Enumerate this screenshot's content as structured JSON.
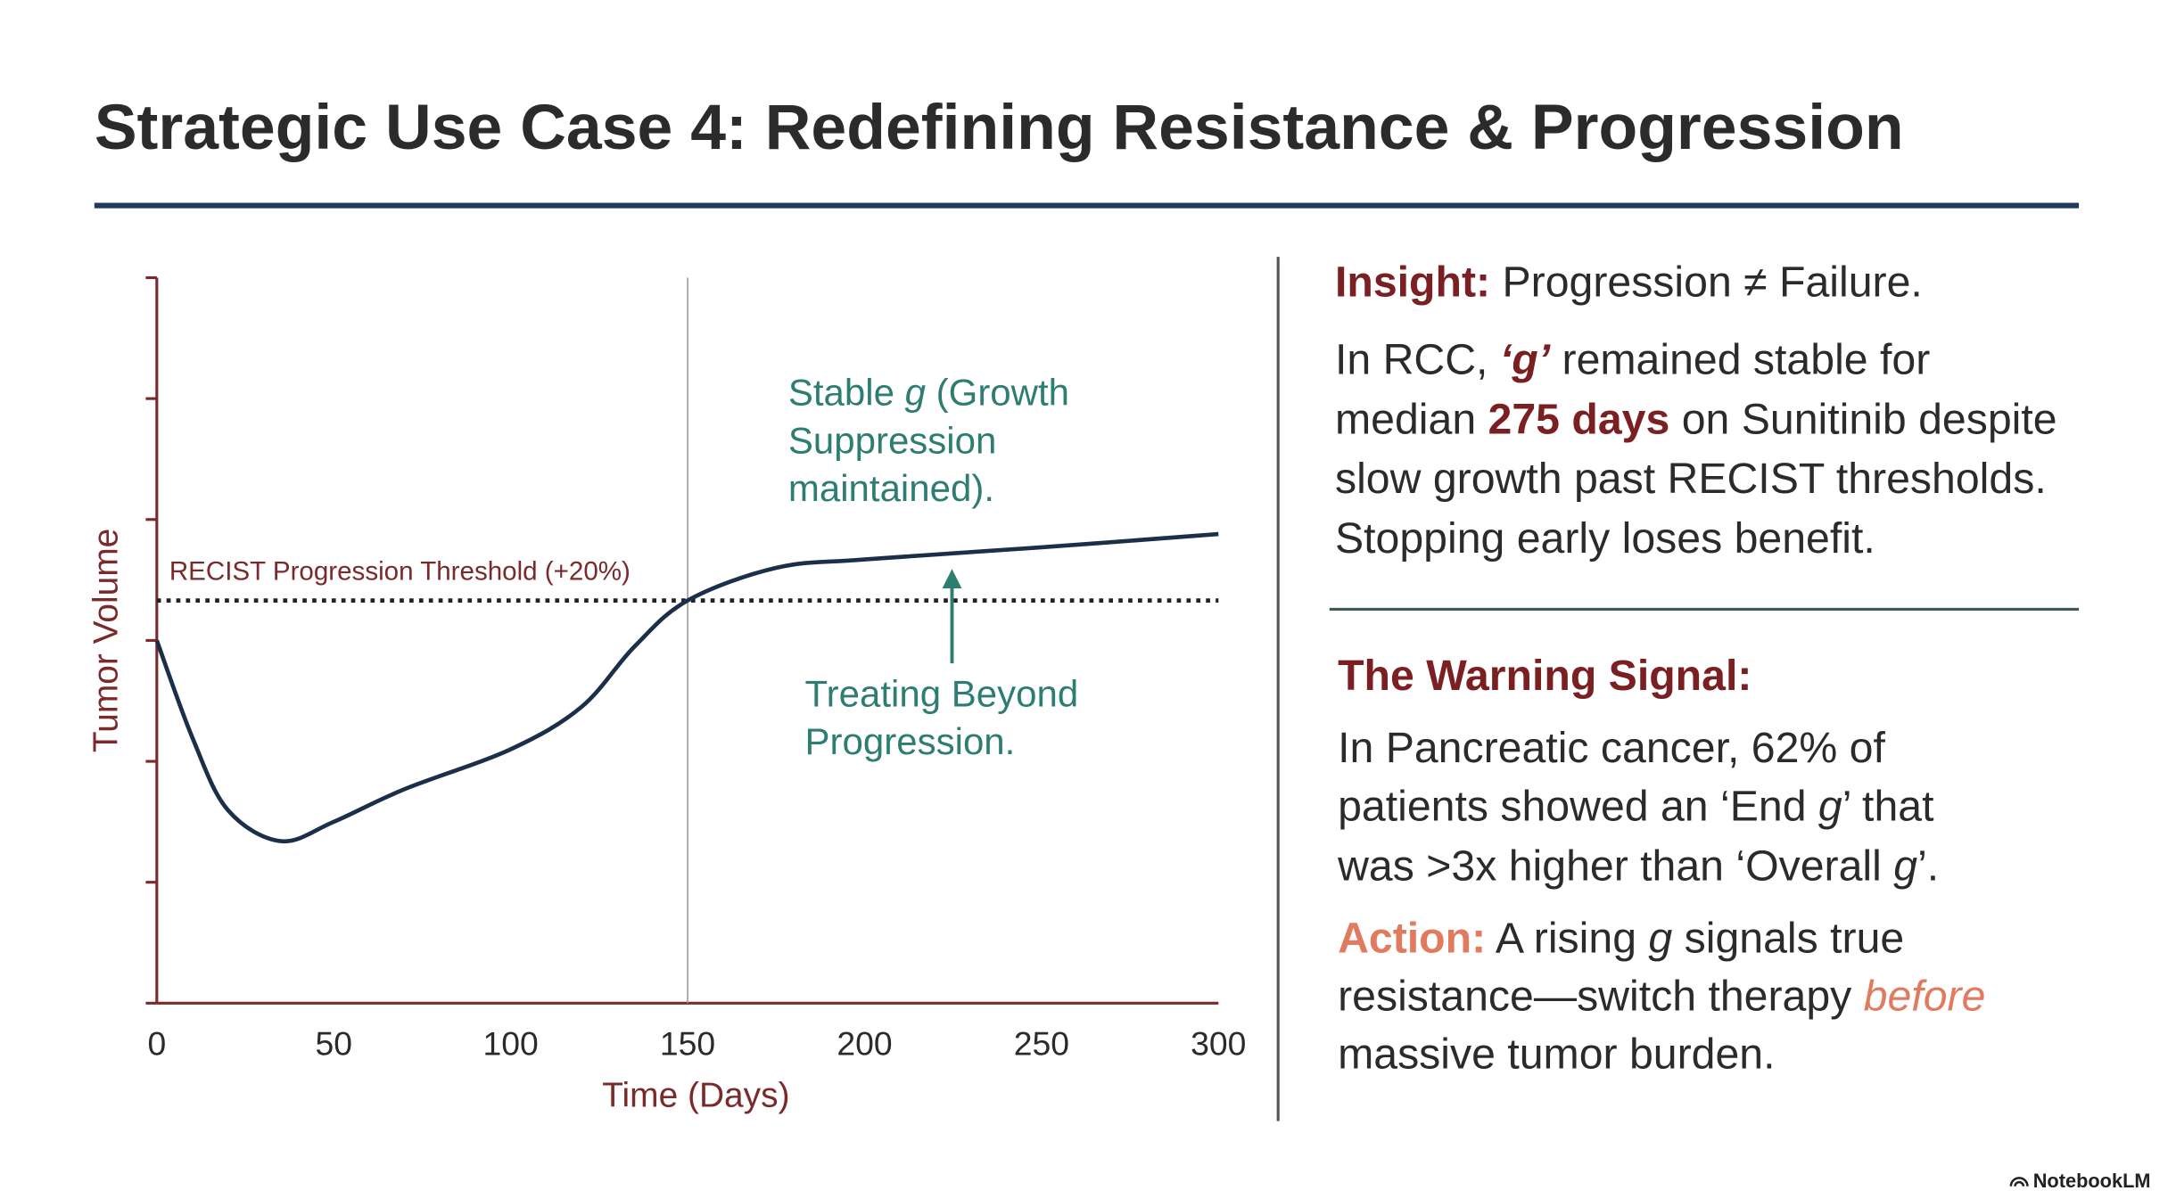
{
  "title": "Strategic Use Case 4: Redefining Resistance & Progression",
  "chart_data": {
    "type": "line",
    "xlabel": "Time (Days)",
    "ylabel": "Tumor Volume",
    "x": [
      0,
      10,
      20,
      35,
      50,
      70,
      100,
      120,
      135,
      150,
      175,
      200,
      250,
      300
    ],
    "values": [
      3.0,
      2.2,
      1.6,
      1.34,
      1.5,
      1.77,
      2.1,
      2.45,
      2.95,
      3.33,
      3.6,
      3.67,
      3.77,
      3.88
    ],
    "color": "#1c2f4a",
    "xlim": [
      0,
      300
    ],
    "xticks": [
      0,
      50,
      100,
      150,
      200,
      250,
      300
    ],
    "ylim": [
      0,
      6
    ],
    "yticks": [
      0,
      1,
      2,
      3,
      4,
      5,
      6
    ],
    "vline": 150,
    "threshold": {
      "value": 3.33,
      "label": "RECIST Progression Threshold (+20%)"
    },
    "annotations": {
      "stable": [
        [
          "Stable ",
          "g",
          " (Growth"
        ],
        [
          "Suppression"
        ],
        [
          "maintained)."
        ]
      ],
      "treating": [
        "Treating Beyond",
        "Progression."
      ]
    }
  },
  "panel": {
    "insight": [
      "Insight:",
      " Progression ≠ Failure."
    ],
    "rcc": [
      [
        "In RCC, ",
        "‘g’",
        " remained stable for"
      ],
      [
        "median ",
        "275 days",
        " on Sunitinib despite"
      ],
      [
        "slow growth past RECIST thresholds."
      ],
      [
        "Stopping early loses benefit."
      ]
    ],
    "warning_title": "The Warning Signal:",
    "warning": [
      [
        "In Pancreatic cancer, 62% of"
      ],
      [
        "patients showed an ‘End ",
        "g",
        "’ that"
      ],
      [
        "was >3x higher than ‘Overall ",
        "g",
        "’."
      ]
    ],
    "action": [
      [
        "Action:",
        " A rising ",
        "g",
        " signals true"
      ],
      [
        "resistance—switch therapy ",
        "before"
      ],
      [
        "massive tumor burden."
      ]
    ]
  },
  "footer": "NotebookLM"
}
